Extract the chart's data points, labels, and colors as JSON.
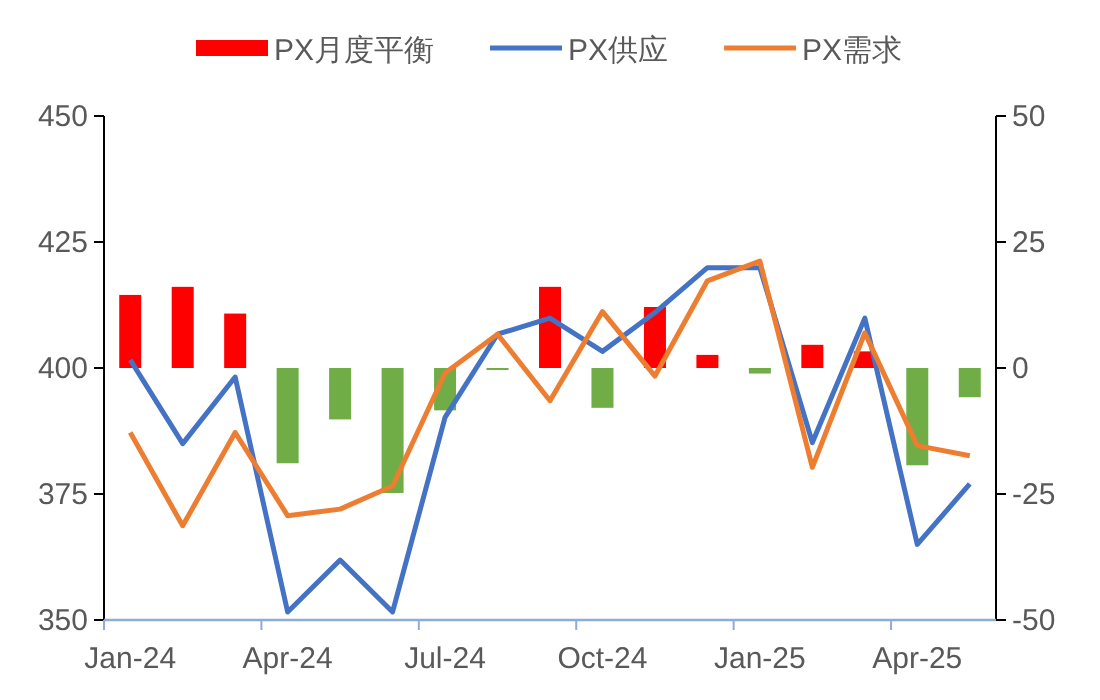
{
  "chart_data": {
    "type": "line",
    "categories": [
      "Jan-24",
      null,
      null,
      "Apr-24",
      null,
      null,
      "Jul-24",
      null,
      null,
      "Oct-24",
      null,
      null,
      "Jan-25",
      null,
      null,
      "Apr-25",
      null
    ],
    "series": [
      {
        "name": "PX月度平衡",
        "type": "bar",
        "axis": "y2",
        "colors": [
          "#ff0000",
          "#ff0000",
          "#ff0000",
          "#70ad47",
          "#70ad47",
          "#70ad47",
          "#70ad47",
          "#70ad47",
          "#ff0000",
          "#70ad47",
          "#ff0000",
          "#ff0000",
          "#70ad47",
          "#ff0000",
          "#ff0000",
          "#70ad47",
          "#70ad47"
        ],
        "color": "#ff0000",
        "values": [
          14.5,
          16.1,
          10.8,
          -18.9,
          -10.2,
          -24.8,
          -8.4,
          -0.4,
          16.1,
          -7.9,
          12.1,
          2.6,
          -1.1,
          4.6,
          3.3,
          -19.3,
          -5.8
        ]
      },
      {
        "name": "PX供应",
        "color": "#4472c4",
        "values": [
          401.6,
          385,
          398.2,
          351.6,
          361.9,
          351.6,
          390.2,
          406.7,
          409.9,
          403.3,
          411,
          419.9,
          419.9,
          385.2,
          409.9,
          365,
          377
        ]
      },
      {
        "name": "PX需求",
        "color": "#ed7d31",
        "values": [
          387.2,
          368.7,
          387.2,
          370.7,
          372,
          376.6,
          399,
          406.7,
          393.5,
          411.2,
          398.4,
          417.3,
          421.2,
          380.3,
          407,
          384.6,
          382.6
        ]
      }
    ],
    "ylim": [
      350,
      450
    ],
    "yticks": [
      350,
      375,
      400,
      425,
      450
    ],
    "y2lim": [
      -50,
      50
    ],
    "y2ticks": [
      {
        "value": -50,
        "label": "-50"
      },
      {
        "value": -25,
        "label": "-25"
      },
      0,
      25,
      50
    ],
    "grid": false,
    "legend": "top",
    "marker": "none"
  }
}
